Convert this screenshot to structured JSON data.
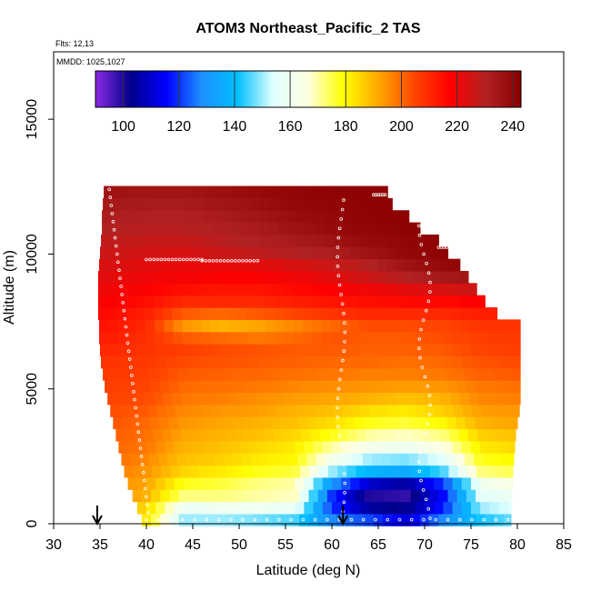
{
  "chart_data": {
    "type": "heatmap",
    "title": "ATOM3 Northeast_Pacific_2 TAS",
    "flights_label": "Flts: 12,13",
    "date_label": "MMDD: 1025,1027",
    "xlabel": "Latitude (deg N)",
    "ylabel": "Altitude (m)",
    "xlim": [
      30,
      85
    ],
    "ylim": [
      0,
      17500
    ],
    "x_ticks": [
      30,
      35,
      40,
      45,
      50,
      55,
      60,
      65,
      70,
      75,
      80,
      85
    ],
    "y_ticks": [
      0,
      5000,
      10000,
      15000
    ],
    "colorbar": {
      "min": 90,
      "max": 243,
      "ticks": [
        100,
        120,
        140,
        160,
        180,
        200,
        220,
        240
      ],
      "colors": [
        "#8a2be2",
        "#00008b",
        "#0000ff",
        "#1e90ff",
        "#00bfff",
        "#e0ffff",
        "#ffffe0",
        "#ffff00",
        "#ffa500",
        "#ff4500",
        "#ff0000",
        "#b22222",
        "#8b0000"
      ]
    },
    "band_altitudes": [
      150,
      600,
      1050,
      1500,
      1950,
      2400,
      2850,
      3300,
      3750,
      4200,
      4650,
      5100,
      5550,
      6000,
      6450,
      6900,
      7350,
      7800,
      8250,
      8700,
      9150,
      9600,
      10050,
      10500,
      10950,
      11400,
      11850,
      12300
    ],
    "band_lat_start": [
      39.5,
      39.0,
      38.5,
      38.0,
      37.6,
      37.3,
      37.0,
      36.7,
      36.4,
      36.1,
      35.8,
      35.5,
      35.3,
      35.1,
      35.0,
      34.9,
      34.9,
      34.8,
      34.8,
      34.8,
      34.8,
      34.9,
      35.0,
      35.1,
      35.2,
      35.2,
      35.3,
      35.4
    ],
    "band_lat_end": [
      79.3,
      79.3,
      79.4,
      79.5,
      79.5,
      79.6,
      79.7,
      79.8,
      80.0,
      80.2,
      80.3,
      80.3,
      80.3,
      80.3,
      80.3,
      80.3,
      80.3,
      77.8,
      76.5,
      75.6,
      74.7,
      73.8,
      72.5,
      71.5,
      69.5,
      68.3,
      66.5,
      66.0
    ],
    "lat_profile": [
      36,
      40,
      44,
      48,
      52,
      56,
      60,
      64,
      68,
      72,
      76,
      80
    ],
    "tas_profile": [
      [
        190,
        182,
        150,
        150,
        148,
        145,
        128,
        122,
        112,
        128,
        142,
        148
      ],
      [
        192,
        185,
        158,
        160,
        160,
        158,
        120,
        105,
        102,
        118,
        150,
        155
      ],
      [
        195,
        190,
        172,
        172,
        170,
        168,
        120,
        100,
        98,
        116,
        155,
        160
      ],
      [
        196,
        192,
        178,
        176,
        172,
        170,
        130,
        110,
        105,
        120,
        160,
        165
      ],
      [
        198,
        194,
        185,
        182,
        178,
        176,
        150,
        138,
        135,
        145,
        172,
        175
      ],
      [
        200,
        196,
        188,
        186,
        182,
        180,
        162,
        150,
        148,
        155,
        178,
        180
      ],
      [
        201,
        198,
        190,
        188,
        185,
        182,
        170,
        162,
        160,
        165,
        182,
        185
      ],
      [
        202,
        199,
        192,
        190,
        188,
        185,
        178,
        170,
        168,
        172,
        186,
        188
      ],
      [
        203,
        200,
        194,
        192,
        190,
        188,
        184,
        178,
        176,
        180,
        190,
        192
      ],
      [
        204,
        202,
        196,
        194,
        193,
        190,
        188,
        184,
        182,
        186,
        193,
        194
      ],
      [
        205,
        204,
        198,
        197,
        195,
        193,
        192,
        190,
        188,
        190,
        196,
        197
      ],
      [
        206,
        205,
        200,
        199,
        198,
        196,
        195,
        194,
        193,
        194,
        198,
        199
      ],
      [
        207,
        206,
        202,
        201,
        200,
        199,
        198,
        197,
        197,
        198,
        201,
        202
      ],
      [
        208,
        207,
        204,
        203,
        202,
        201,
        200,
        200,
        199,
        200,
        203,
        204
      ],
      [
        210,
        208,
        206,
        204,
        203,
        202,
        202,
        201,
        201,
        202,
        205,
        206
      ],
      [
        212,
        209,
        202,
        200,
        198,
        200,
        203,
        202,
        202,
        204,
        206,
        207
      ],
      [
        214,
        210,
        194,
        190,
        192,
        196,
        200,
        204,
        204,
        205,
        208,
        208
      ],
      [
        216,
        212,
        202,
        200,
        202,
        205,
        208,
        210,
        210,
        210,
        212,
        212
      ],
      [
        218,
        215,
        210,
        210,
        210,
        212,
        214,
        215,
        216,
        216,
        218,
        218
      ],
      [
        220,
        218,
        215,
        214,
        214,
        216,
        218,
        220,
        222,
        224,
        226,
        226
      ],
      [
        222,
        220,
        219,
        218,
        218,
        220,
        222,
        226,
        230,
        234,
        236,
        236
      ],
      [
        224,
        222,
        221,
        221,
        222,
        224,
        226,
        230,
        236,
        240,
        241,
        241
      ],
      [
        226,
        225,
        224,
        226,
        228,
        230,
        232,
        236,
        240,
        242,
        242,
        242
      ],
      [
        228,
        227,
        227,
        229,
        231,
        233,
        236,
        239,
        241,
        242,
        242,
        242
      ],
      [
        230,
        229,
        229,
        231,
        233,
        236,
        239,
        241,
        242,
        242,
        242,
        242
      ],
      [
        232,
        231,
        231,
        233,
        235,
        238,
        240,
        242,
        242,
        242,
        242,
        242
      ],
      [
        234,
        233,
        233,
        235,
        237,
        240,
        241,
        242,
        242,
        242,
        242,
        242
      ],
      [
        236,
        235,
        235,
        237,
        239,
        241,
        242,
        242,
        242,
        242,
        242,
        242
      ]
    ],
    "arrow_markers": [
      34.7,
      61.2
    ]
  }
}
